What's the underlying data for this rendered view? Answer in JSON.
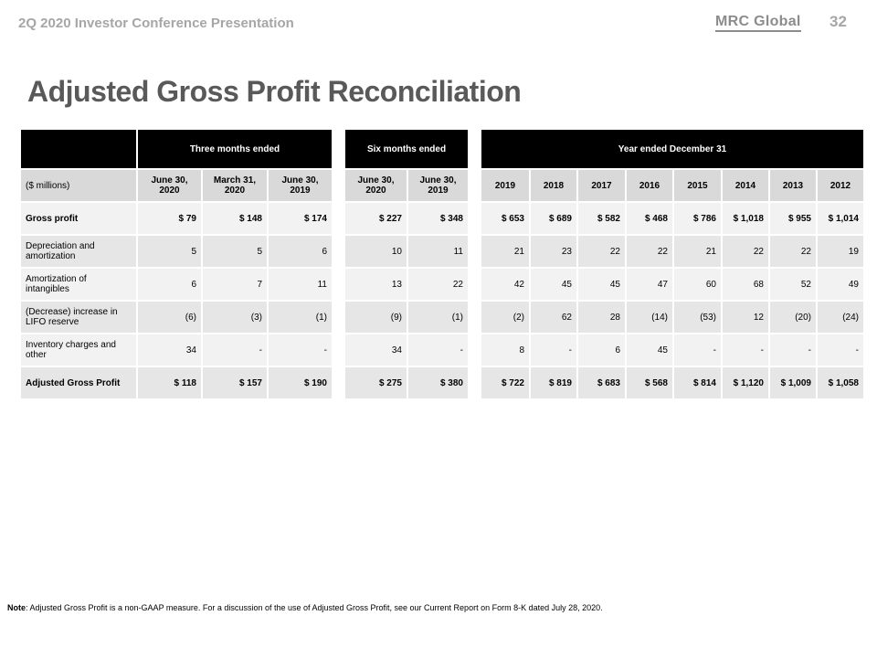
{
  "header": {
    "subtitle": "2Q 2020 Investor Conference Presentation",
    "logo": "MRC Global",
    "page": "32"
  },
  "title": "Adjusted Gross Profit Reconciliation",
  "table": {
    "groups": [
      {
        "label": "Three months ended",
        "span": 3
      },
      {
        "label": "Six months ended",
        "span": 2
      },
      {
        "label": "Year ended December 31",
        "span": 8
      }
    ],
    "corner": "($ millions)",
    "columns": [
      "June 30, 2020",
      "March 31, 2020",
      "June 30, 2019",
      "June 30, 2020",
      "June 30, 2019",
      "2019",
      "2018",
      "2017",
      "2016",
      "2015",
      "2014",
      "2013",
      "2012"
    ],
    "rows": [
      {
        "label": "Gross profit",
        "bold": true,
        "values": [
          "$ 79",
          "$ 148",
          "$ 174",
          "$ 227",
          "$ 348",
          "$ 653",
          "$ 689",
          "$ 582",
          "$ 468",
          "$ 786",
          "$ 1,018",
          "$ 955",
          "$ 1,014"
        ]
      },
      {
        "label": "Depreciation and amortization",
        "bold": false,
        "values": [
          "5",
          "5",
          "6",
          "10",
          "11",
          "21",
          "23",
          "22",
          "22",
          "21",
          "22",
          "22",
          "19"
        ]
      },
      {
        "label": "Amortization of intangibles",
        "bold": false,
        "values": [
          "6",
          "7",
          "11",
          "13",
          "22",
          "42",
          "45",
          "45",
          "47",
          "60",
          "68",
          "52",
          "49"
        ]
      },
      {
        "label": "(Decrease) increase in LIFO reserve",
        "bold": false,
        "values": [
          "(6)",
          "(3)",
          "(1)",
          "(9)",
          "(1)",
          "(2)",
          "62",
          "28",
          "(14)",
          "(53)",
          "12",
          "(20)",
          "(24)"
        ]
      },
      {
        "label": "Inventory charges and other",
        "bold": false,
        "values": [
          "34",
          "-",
          "-",
          "34",
          "-",
          "8",
          "-",
          "6",
          "45",
          "-",
          "-",
          "-",
          "-"
        ]
      },
      {
        "label": "Adjusted Gross Profit",
        "bold": true,
        "values": [
          "$ 118",
          "$ 157",
          "$ 190",
          "$ 275",
          "$ 380",
          "$ 722",
          "$ 819",
          "$ 683",
          "$ 568",
          "$ 814",
          "$ 1,120",
          "$ 1,009",
          "$ 1,058"
        ]
      }
    ]
  },
  "note": {
    "label": "Note",
    "text": ": Adjusted Gross Profit is a non-GAAP measure. For a discussion of the use of Adjusted Gross Profit, see our Current Report on Form 8-K dated July 28, 2020."
  }
}
